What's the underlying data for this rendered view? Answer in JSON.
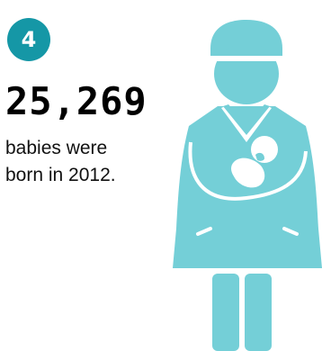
{
  "badge": {
    "label": "4"
  },
  "stat": {
    "number": "25,269",
    "caption_line1": "babies were",
    "caption_line2": "born in 2012."
  },
  "colors": {
    "accent": "#1597a6",
    "figure": "#74cfd7"
  },
  "illustration": {
    "icon": "nurse-holding-baby-icon"
  }
}
